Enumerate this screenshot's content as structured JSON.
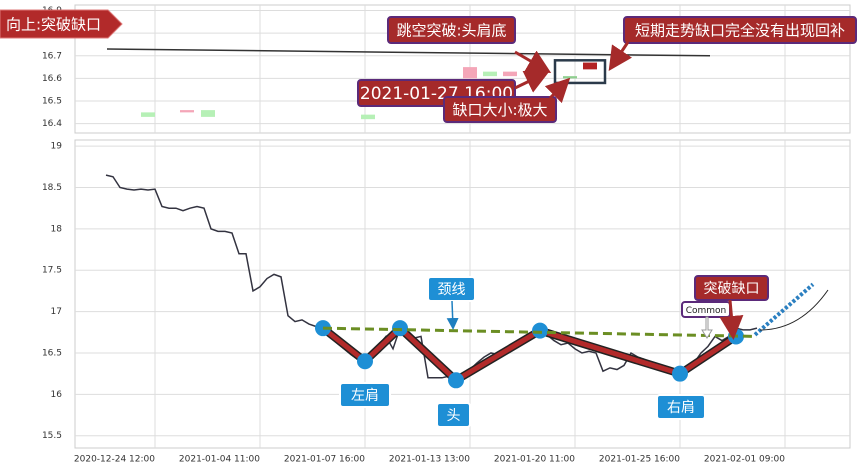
{
  "chart_data": [
    {
      "type": "candlestick",
      "ylim": [
        16.35,
        16.92
      ],
      "yticks": [
        16.4,
        16.5,
        16.6,
        16.7,
        16.8,
        16.9
      ],
      "grid": true,
      "categories": [
        null,
        null,
        null,
        null,
        null,
        null,
        null,
        null,
        null
      ],
      "open": [
        16.43,
        16.45,
        16.43,
        16.42,
        16.6,
        16.61,
        16.61,
        16.6,
        16.64
      ],
      "close": [
        16.45,
        16.46,
        16.46,
        16.44,
        16.65,
        16.63,
        16.63,
        16.61,
        16.67
      ],
      "colors": [
        "#b6f0b6",
        "#f4a6b8",
        "#b6f0b6",
        "#b6f0b6",
        "#f4a6b8",
        "#b6f0b6",
        "#f4a6b8",
        "#8fce8f",
        "#b22222"
      ],
      "trend_line": [
        16.73,
        16.7
      ],
      "gap_box": [
        16.58,
        16.68
      ],
      "annotations": [
        "向上:突破缺口",
        "跳空突破:头肩底",
        "短期走势缺口完全没有出现回补",
        "2021-01-27 16:00",
        "缺口大小:极大"
      ]
    },
    {
      "type": "line",
      "ylim": [
        15.4,
        19.05
      ],
      "yticks": [
        15.5,
        16.0,
        16.5,
        17.0,
        17.5,
        18.0,
        18.5,
        19.0
      ],
      "grid": true,
      "categories": [
        null,
        null,
        null,
        null,
        null,
        null,
        null,
        "2020-12-24 12:00",
        null,
        null,
        null,
        null,
        null,
        null,
        null,
        null,
        null,
        null,
        null,
        null,
        null,
        null,
        "2021-01-04 11:00",
        null,
        null,
        null,
        null,
        null,
        null,
        null,
        null,
        null,
        null,
        null,
        null,
        null,
        null,
        "2021-01-07 16:00",
        null,
        null,
        null,
        null,
        null,
        null,
        null,
        null,
        null,
        null,
        null,
        null,
        null,
        null,
        "2021-01-13 13:00",
        null,
        null,
        null,
        null,
        null,
        null,
        null,
        null,
        null,
        null,
        null,
        null,
        null,
        null,
        "2021-01-20 11:00",
        null,
        null,
        null,
        null,
        null,
        null,
        null,
        null,
        null,
        null,
        null,
        null,
        null,
        null,
        "2021-01-25 16:00",
        null,
        null,
        null,
        null,
        null,
        null,
        null,
        null,
        null,
        null,
        null,
        null,
        null,
        null,
        "2021-02-01 09:00",
        null,
        null,
        null,
        null,
        null,
        null,
        null,
        null,
        null
      ],
      "series": [
        {
          "color": "#333340",
          "values": [
            18.65,
            18.63,
            18.5,
            18.48,
            18.47,
            18.48,
            18.47,
            18.48,
            18.27,
            18.25,
            18.25,
            18.22,
            18.25,
            18.27,
            18.25,
            18.0,
            17.97,
            17.97,
            17.95,
            17.7,
            17.7,
            17.25,
            17.3,
            17.4,
            17.45,
            17.42,
            16.95,
            16.88,
            16.9,
            16.85,
            16.82,
            16.8,
            16.7,
            16.62,
            16.55,
            16.48,
            16.42,
            16.38,
            16.5,
            16.6,
            16.7,
            16.55,
            16.8,
            16.7,
            16.68,
            16.7,
            16.2,
            16.2,
            16.2,
            16.22,
            16.15,
            16.25,
            16.3,
            16.38,
            16.45,
            16.5,
            16.48,
            16.55,
            16.6,
            16.65,
            16.7,
            16.72,
            16.75,
            16.72,
            16.65,
            16.6,
            16.62,
            16.55,
            16.5,
            16.52,
            16.5,
            16.28,
            16.32,
            16.3,
            16.35,
            16.5,
            16.45,
            16.42,
            16.38,
            16.35,
            16.32,
            16.28,
            16.25,
            16.3,
            16.38,
            16.5,
            16.58,
            16.7,
            16.65,
            16.7,
            16.8,
            16.78,
            16.78,
            16.8,
            null,
            null,
            null,
            null,
            null,
            null,
            null,
            null,
            null,
            null,
            null,
            null,
            null
          ]
        }
      ],
      "pattern": [
        16.8,
        16.4,
        16.8,
        16.17,
        16.77,
        16.25,
        16.7
      ],
      "neckline": [
        16.8,
        16.7
      ],
      "breakout": [
        16.72,
        17.33
      ],
      "annotations": [
        "颈线",
        "左肩",
        "头",
        "右肩",
        "突破缺口",
        "Common"
      ]
    }
  ]
}
